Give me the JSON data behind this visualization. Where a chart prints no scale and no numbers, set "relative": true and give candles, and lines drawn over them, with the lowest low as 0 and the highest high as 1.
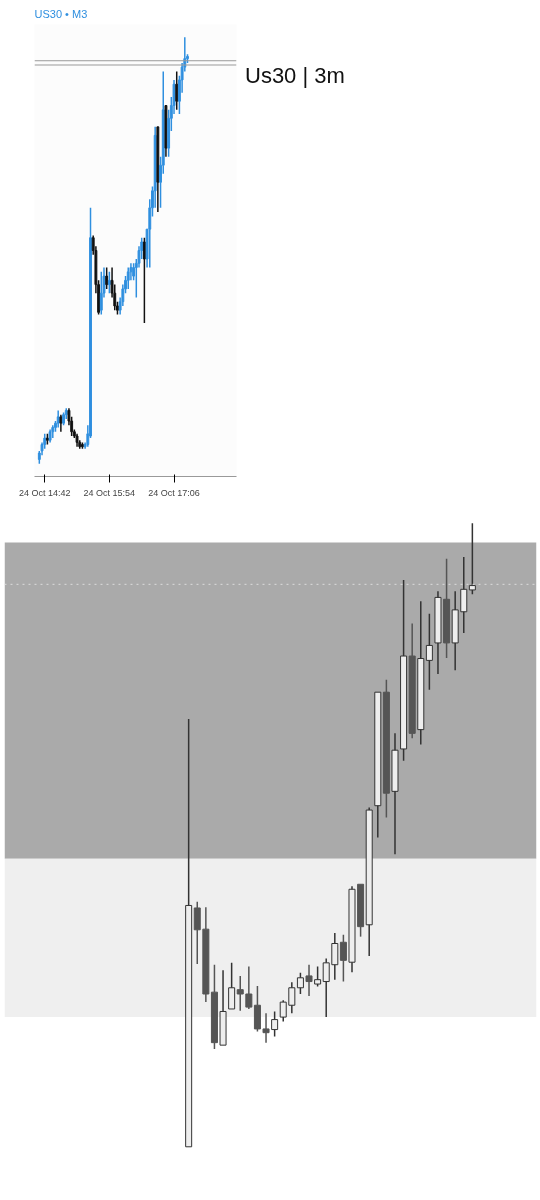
{
  "chart_data": [
    {
      "type": "candlestick",
      "title": "US30 • M3",
      "annotations": [
        "Us30 | 3m"
      ],
      "relative": true,
      "tick_labels": "x",
      "grid": false,
      "categories": [
        null,
        null,
        "24 Oct 14:42",
        null,
        null,
        null,
        null,
        null,
        null,
        null,
        null,
        null,
        null,
        null,
        null,
        null,
        null,
        null,
        null,
        null,
        null,
        null,
        null,
        null,
        null,
        null,
        "24 Oct 15:54",
        null,
        null,
        null,
        null,
        null,
        null,
        null,
        null,
        null,
        null,
        null,
        null,
        null,
        null,
        null,
        null,
        null,
        null,
        null,
        null,
        null,
        null,
        null,
        "24 Oct 17:06",
        null,
        null,
        null,
        null,
        null
      ],
      "ohlc": [
        [
          0.01,
          0.03,
          0.0,
          0.025
        ],
        [
          0.03,
          0.05,
          0.02,
          0.045
        ],
        [
          0.045,
          0.07,
          0.035,
          0.06
        ],
        [
          0.06,
          0.07,
          0.045,
          0.055
        ],
        [
          0.055,
          0.08,
          0.05,
          0.075
        ],
        [
          0.075,
          0.09,
          0.06,
          0.085
        ],
        [
          0.085,
          0.1,
          0.075,
          0.095
        ],
        [
          0.095,
          0.125,
          0.085,
          0.11
        ],
        [
          0.11,
          0.115,
          0.075,
          0.095
        ],
        [
          0.095,
          0.12,
          0.09,
          0.115
        ],
        [
          0.115,
          0.13,
          0.105,
          0.125
        ],
        [
          0.125,
          0.13,
          0.09,
          0.1
        ],
        [
          0.1,
          0.11,
          0.065,
          0.075
        ],
        [
          0.075,
          0.08,
          0.06,
          0.065
        ],
        [
          0.065,
          0.07,
          0.04,
          0.05
        ],
        [
          0.05,
          0.055,
          0.035,
          0.04
        ],
        [
          0.045,
          0.05,
          0.035,
          0.04
        ],
        [
          0.04,
          0.05,
          0.035,
          0.045
        ],
        [
          0.045,
          0.09,
          0.04,
          0.07
        ],
        [
          0.065,
          0.6,
          0.06,
          0.53
        ],
        [
          0.53,
          0.535,
          0.49,
          0.5
        ],
        [
          0.5,
          0.51,
          0.4,
          0.42
        ],
        [
          0.42,
          0.43,
          0.35,
          0.355
        ],
        [
          0.36,
          0.45,
          0.35,
          0.4
        ],
        [
          0.4,
          0.46,
          0.39,
          0.44
        ],
        [
          0.44,
          0.46,
          0.41,
          0.42
        ],
        [
          0.42,
          0.45,
          0.4,
          0.43
        ],
        [
          0.43,
          0.46,
          0.39,
          0.4
        ],
        [
          0.4,
          0.42,
          0.36,
          0.37
        ],
        [
          0.37,
          0.38,
          0.35,
          0.36
        ],
        [
          0.36,
          0.39,
          0.35,
          0.38
        ],
        [
          0.38,
          0.42,
          0.37,
          0.41
        ],
        [
          0.41,
          0.44,
          0.4,
          0.43
        ],
        [
          0.43,
          0.46,
          0.41,
          0.45
        ],
        [
          0.45,
          0.47,
          0.43,
          0.46
        ],
        [
          0.44,
          0.47,
          0.43,
          0.46
        ],
        [
          0.46,
          0.48,
          0.39,
          0.47
        ],
        [
          0.47,
          0.51,
          0.46,
          0.5
        ],
        [
          0.5,
          0.53,
          0.48,
          0.52
        ],
        [
          0.52,
          0.53,
          0.33,
          0.48
        ],
        [
          0.48,
          0.55,
          0.46,
          0.55
        ],
        [
          0.55,
          0.62,
          0.46,
          0.6
        ],
        [
          0.6,
          0.65,
          0.58,
          0.64
        ],
        [
          0.64,
          0.79,
          0.6,
          0.77
        ],
        [
          0.79,
          0.79,
          0.59,
          0.66
        ],
        [
          0.66,
          0.72,
          0.6,
          0.7
        ],
        [
          0.7,
          0.92,
          0.68,
          0.83
        ],
        [
          0.84,
          0.84,
          0.72,
          0.74
        ],
        [
          0.74,
          0.83,
          0.72,
          0.81
        ],
        [
          0.81,
          0.86,
          0.78,
          0.84
        ],
        [
          0.84,
          0.9,
          0.82,
          0.89
        ],
        [
          0.89,
          0.92,
          0.83,
          0.85
        ],
        [
          0.85,
          0.91,
          0.82,
          0.9
        ],
        [
          0.9,
          0.94,
          0.87,
          0.93
        ],
        [
          0.93,
          1.0,
          0.92,
          0.95
        ],
        [
          0.95,
          0.96,
          0.94,
          0.955
        ]
      ],
      "colors": [
        "#2f8fdf",
        "#2f8fdf",
        "#2f8fdf",
        "#111111",
        "#2f8fdf",
        "#2f8fdf",
        "#2f8fdf",
        "#2f8fdf",
        "#111111",
        "#2f8fdf",
        "#2f8fdf",
        "#111111",
        "#111111",
        "#111111",
        "#111111",
        "#111111",
        "#111111",
        "#2f8fdf",
        "#2f8fdf",
        "#2f8fdf",
        "#111111",
        "#111111",
        "#111111",
        "#2f8fdf",
        "#2f8fdf",
        "#111111",
        "#2f8fdf",
        "#111111",
        "#111111",
        "#111111",
        "#2f8fdf",
        "#2f8fdf",
        "#2f8fdf",
        "#2f8fdf",
        "#2f8fdf",
        "#2f8fdf",
        "#2f8fdf",
        "#2f8fdf",
        "#2f8fdf",
        "#111111",
        "#2f8fdf",
        "#2f8fdf",
        "#2f8fdf",
        "#2f8fdf",
        "#111111",
        "#2f8fdf",
        "#2f8fdf",
        "#111111",
        "#2f8fdf",
        "#2f8fdf",
        "#2f8fdf",
        "#111111",
        "#2f8fdf",
        "#2f8fdf",
        "#2f8fdf",
        "#2f8fdf"
      ],
      "ref_lines": [
        {
          "axis": "y",
          "value": 0.945,
          "color": "#999999",
          "line_style": "solid"
        },
        {
          "axis": "y",
          "value": 0.935,
          "color": "#999999",
          "line_style": "solid"
        }
      ]
    },
    {
      "type": "candlestick",
      "relative": true,
      "tick_labels": false,
      "grid": false,
      "categories": [
        null,
        null,
        null,
        null,
        null,
        null,
        null,
        null,
        null,
        null,
        null,
        null,
        null,
        null,
        null,
        null,
        null,
        null,
        null,
        null,
        null,
        null,
        null,
        null,
        null,
        null,
        null,
        null,
        null,
        null,
        null,
        null,
        null,
        null
      ],
      "ohlc": [
        [
          0.0,
          0.686,
          0.0,
          0.387
        ],
        [
          0.383,
          0.393,
          0.293,
          0.348
        ],
        [
          0.349,
          0.384,
          0.232,
          0.245
        ],
        [
          0.248,
          0.292,
          0.157,
          0.167
        ],
        [
          0.163,
          0.283,
          0.163,
          0.217
        ],
        [
          0.221,
          0.295,
          0.221,
          0.255
        ],
        [
          0.252,
          0.274,
          0.218,
          0.245
        ],
        [
          0.245,
          0.289,
          0.221,
          0.224
        ],
        [
          0.227,
          0.258,
          0.185,
          0.189
        ],
        [
          0.189,
          0.214,
          0.167,
          0.183
        ],
        [
          0.188,
          0.217,
          0.177,
          0.204
        ],
        [
          0.208,
          0.235,
          0.201,
          0.232
        ],
        [
          0.227,
          0.264,
          0.214,
          0.255
        ],
        [
          0.255,
          0.279,
          0.245,
          0.271
        ],
        [
          0.274,
          0.292,
          0.242,
          0.265
        ],
        [
          0.261,
          0.289,
          0.257,
          0.268
        ],
        [
          0.265,
          0.302,
          0.208,
          0.295
        ],
        [
          0.292,
          0.343,
          0.268,
          0.326
        ],
        [
          0.328,
          0.34,
          0.265,
          0.299
        ],
        [
          0.296,
          0.418,
          0.28,
          0.413
        ],
        [
          0.421,
          0.421,
          0.337,
          0.353
        ],
        [
          0.356,
          0.544,
          0.306,
          0.54
        ],
        [
          0.547,
          0.729,
          0.496,
          0.729
        ],
        [
          0.729,
          0.749,
          0.528,
          0.567
        ],
        [
          0.57,
          0.663,
          0.469,
          0.636
        ],
        [
          0.638,
          0.909,
          0.619,
          0.787
        ],
        [
          0.787,
          0.839,
          0.655,
          0.663
        ],
        [
          0.669,
          0.875,
          0.645,
          0.783
        ],
        [
          0.78,
          0.855,
          0.733,
          0.804
        ],
        [
          0.808,
          0.891,
          0.758,
          0.881
        ],
        [
          0.878,
          0.943,
          0.784,
          0.808
        ],
        [
          0.808,
          0.891,
          0.764,
          0.861
        ],
        [
          0.858,
          0.946,
          0.824,
          0.894
        ],
        [
          0.893,
          1.0,
          0.886,
          0.9
        ]
      ],
      "colors": [
        "#eeeeee",
        "#555555",
        "#555555",
        "#555555",
        "#eeeeee",
        "#eeeeee",
        "#555555",
        "#555555",
        "#555555",
        "#555555",
        "#eeeeee",
        "#eeeeee",
        "#eeeeee",
        "#eeeeee",
        "#555555",
        "#eeeeee",
        "#eeeeee",
        "#eeeeee",
        "#555555",
        "#eeeeee",
        "#555555",
        "#eeeeee",
        "#eeeeee",
        "#555555",
        "#eeeeee",
        "#eeeeee",
        "#555555",
        "#eeeeee",
        "#eeeeee",
        "#eeeeee",
        "#555555",
        "#eeeeee",
        "#eeeeee",
        "#eeeeee"
      ],
      "bands": [
        {
          "axis": "y",
          "from": 0.462,
          "to": 0.969,
          "color": "#aaaaaa"
        },
        {
          "axis": "y",
          "from": 0.208,
          "to": 0.462,
          "color": "#efefef"
        }
      ],
      "ref_lines": [
        {
          "axis": "y",
          "value": 0.902,
          "color": "#dddddd",
          "line_style": "dotted"
        }
      ]
    }
  ]
}
